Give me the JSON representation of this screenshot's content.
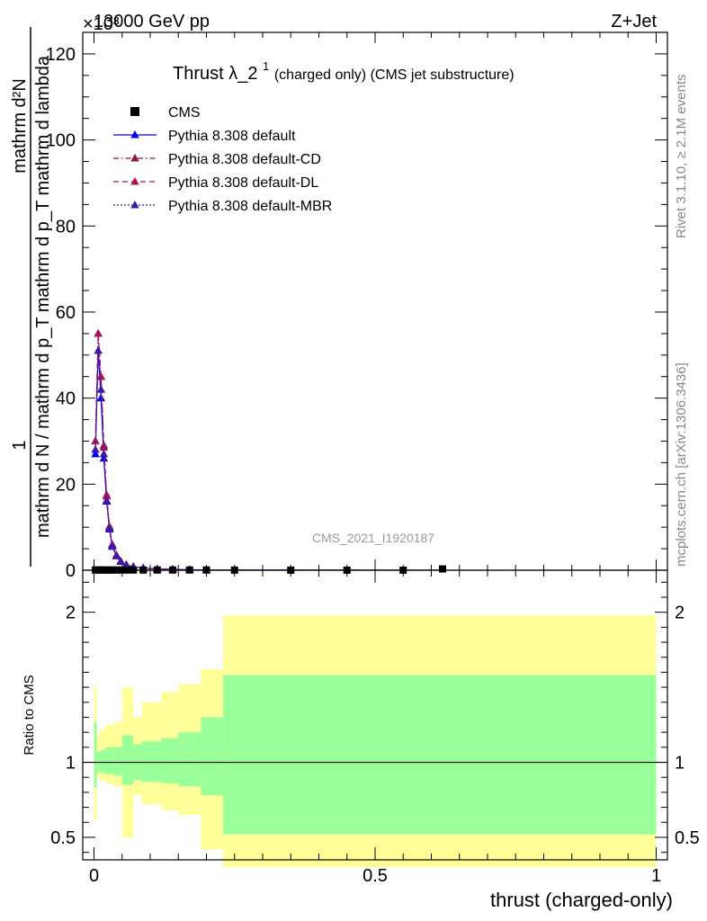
{
  "header": {
    "left": "13000 GeV pp",
    "right": "Z+Jet",
    "exponent": "×10³"
  },
  "side_labels": {
    "rivet": "Rivet 3.1.10, ≥ 2.1M events",
    "mcplots": "mcplots.cern.ch [arXiv:1306.3436]"
  },
  "watermark": "CMS_2021_I1920187",
  "colors": {
    "default": "#0000ee",
    "cd": "#8b1a3a",
    "dl": "#b0105a",
    "mbr": "#3a1aa8",
    "band_inner": "#99ff99",
    "band_outer": "#ffff99"
  },
  "chart_data": [
    {
      "type": "line",
      "title": "Thrust λ_2¹ (charged only) (CMS jet substructure)",
      "title_main": "Thrust λ_2",
      "title_sup": "1",
      "title_rest": " (charged only) (CMS jet substructure)",
      "ylabel_lines": [
        "1",
        "mathrm d N / mathrm d p_T mathrm d p_T mathrm d lambda",
        "mathrm d²N"
      ],
      "ylabel_numer": "mathrm d²N",
      "ylabel_denom": "mathrm d N / mathrm d p_T mathrm d p_T mathrm d lambda",
      "ylabel_numer_top": "1",
      "xlim": [
        -0.02,
        1.02
      ],
      "ylim": [
        0,
        125
      ],
      "yticks": [
        0,
        20,
        40,
        60,
        80,
        100,
        120
      ],
      "legend_position": "top-left",
      "legend": [
        {
          "name": "CMS",
          "style": "square"
        },
        {
          "name": "Pythia 8.308 default",
          "style": "solid"
        },
        {
          "name": "Pythia 8.308 default-CD",
          "style": "dashdot"
        },
        {
          "name": "Pythia 8.308 default-DL",
          "style": "dashed"
        },
        {
          "name": "Pythia 8.308 default-MBR",
          "style": "dotted"
        }
      ],
      "x": [
        0.0025,
        0.0075,
        0.0125,
        0.0175,
        0.0225,
        0.0275,
        0.0325,
        0.04,
        0.0475,
        0.0575,
        0.07,
        0.0875,
        0.1125,
        0.14,
        0.17,
        0.2,
        0.25,
        0.35,
        0.45,
        0.55,
        0.62
      ],
      "cms": [
        0.05,
        0.05,
        0.05,
        0.05,
        0.05,
        0.05,
        0.05,
        0.05,
        0.05,
        0.05,
        0.05,
        0.05,
        0.05,
        0.05,
        0.05,
        0.05,
        0.03,
        0.02,
        0.01,
        0.01,
        0.3
      ],
      "series": [
        {
          "name": "Pythia 8.308 default",
          "values": [
            27,
            51,
            40,
            26,
            16,
            9.5,
            5.5,
            3.3,
            2.0,
            1.2,
            0.8,
            0.5,
            0.3,
            0.2,
            0.1,
            0.08,
            0.05,
            0.03,
            0.02,
            0.01,
            0.01
          ],
          "style": "solid"
        },
        {
          "name": "Pythia 8.308 default-CD",
          "values": [
            30,
            55,
            45,
            29,
            17.5,
            10.2,
            6.0,
            3.5,
            2.1,
            1.3,
            0.85,
            0.5,
            0.3,
            0.2,
            0.1,
            0.08,
            0.05,
            0.03,
            0.02,
            0.01,
            0.01
          ],
          "style": "dashdot"
        },
        {
          "name": "Pythia 8.308 default-DL",
          "values": [
            30,
            55,
            45,
            28.5,
            17.2,
            10.0,
            5.9,
            3.5,
            2.1,
            1.3,
            0.85,
            0.5,
            0.3,
            0.2,
            0.1,
            0.08,
            0.05,
            0.03,
            0.02,
            0.01,
            0.01
          ],
          "style": "dashed"
        },
        {
          "name": "Pythia 8.308 default-MBR",
          "values": [
            28,
            51,
            42,
            27,
            16.2,
            9.7,
            5.6,
            3.3,
            2.0,
            1.2,
            0.8,
            0.5,
            0.3,
            0.2,
            0.1,
            0.08,
            0.05,
            0.03,
            0.02,
            0.01,
            0.01
          ],
          "style": "dotted"
        }
      ]
    },
    {
      "type": "area",
      "ylabel": "Ratio to CMS",
      "xlabel": "thrust (charged-only)",
      "xlim": [
        -0.02,
        1.02
      ],
      "ylim": [
        0.35,
        2.28
      ],
      "xticks": [
        0,
        0.5,
        1
      ],
      "xtick_labels": [
        "0",
        "0.5",
        "1"
      ],
      "yticks": [
        0.5,
        1,
        2
      ],
      "ytick_labels": [
        "0.5",
        "1",
        "2"
      ],
      "reference": 1,
      "bins": [
        {
          "x0": 0.0,
          "x1": 0.005,
          "inner_lo": 0.83,
          "inner_hi": 1.27,
          "outer_lo": 0.62,
          "outer_hi": 1.5
        },
        {
          "x0": 0.005,
          "x1": 0.01,
          "inner_lo": 0.93,
          "inner_hi": 1.07,
          "outer_lo": 0.9,
          "outer_hi": 1.18
        },
        {
          "x0": 0.01,
          "x1": 0.02,
          "inner_lo": 0.93,
          "inner_hi": 1.08,
          "outer_lo": 0.88,
          "outer_hi": 1.22
        },
        {
          "x0": 0.02,
          "x1": 0.035,
          "inner_lo": 0.92,
          "inner_hi": 1.1,
          "outer_lo": 0.86,
          "outer_hi": 1.25
        },
        {
          "x0": 0.035,
          "x1": 0.05,
          "inner_lo": 0.91,
          "inner_hi": 1.1,
          "outer_lo": 0.84,
          "outer_hi": 1.27
        },
        {
          "x0": 0.05,
          "x1": 0.07,
          "inner_lo": 0.85,
          "inner_hi": 1.18,
          "outer_lo": 0.5,
          "outer_hi": 1.5
        },
        {
          "x0": 0.07,
          "x1": 0.085,
          "inner_lo": 0.88,
          "inner_hi": 1.12,
          "outer_lo": 0.78,
          "outer_hi": 1.3
        },
        {
          "x0": 0.085,
          "x1": 0.12,
          "inner_lo": 0.87,
          "inner_hi": 1.14,
          "outer_lo": 0.72,
          "outer_hi": 1.4
        },
        {
          "x0": 0.12,
          "x1": 0.15,
          "inner_lo": 0.86,
          "inner_hi": 1.16,
          "outer_lo": 0.68,
          "outer_hi": 1.47
        },
        {
          "x0": 0.15,
          "x1": 0.19,
          "inner_lo": 0.84,
          "inner_hi": 1.2,
          "outer_lo": 0.65,
          "outer_hi": 1.52
        },
        {
          "x0": 0.19,
          "x1": 0.23,
          "inner_lo": 0.78,
          "inner_hi": 1.3,
          "outer_lo": 0.42,
          "outer_hi": 1.62
        },
        {
          "x0": 0.23,
          "x1": 1.0,
          "inner_lo": 0.52,
          "inner_hi": 1.58,
          "outer_lo": 0.3,
          "outer_hi": 1.98
        }
      ]
    }
  ]
}
